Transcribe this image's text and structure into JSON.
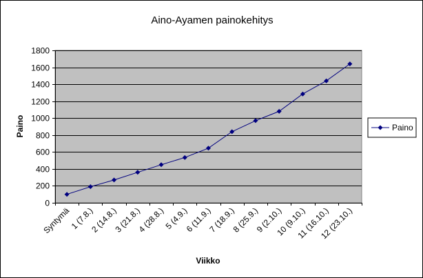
{
  "chart_data": {
    "type": "line",
    "title": "Aino-Ayamen painokehitys",
    "xlabel": "Viikko",
    "ylabel": "Paino",
    "categories": [
      "Syntymä",
      "1 (7.8.)",
      "2 (14.8.)",
      "3 (21.8.)",
      "4 (28.8.)",
      "5 (4.9.)",
      "6 (11.9.)",
      "7 (18.9.)",
      "8 (25.9.)",
      "9 (2.10.)",
      "10 (9.10.)",
      "11 (16.10.)",
      "12 (23.10.)"
    ],
    "series": [
      {
        "name": "Paino",
        "values": [
          100,
          190,
          270,
          360,
          450,
          535,
          645,
          840,
          970,
          1080,
          1285,
          1440,
          1640
        ],
        "color": "#00007f"
      }
    ],
    "ylim": [
      0,
      1800
    ],
    "yticks": [
      0,
      200,
      400,
      600,
      800,
      1000,
      1200,
      1400,
      1600,
      1800
    ],
    "grid": true,
    "legend_position": "right",
    "colors": {
      "plot_background": "#c0c0c0",
      "gridline": "#000000"
    }
  }
}
